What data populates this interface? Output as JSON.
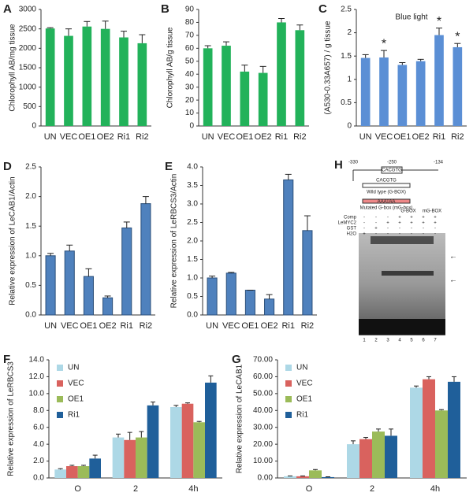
{
  "chart_data": [
    {
      "type": "bar",
      "label": "A",
      "ylabel": "Chlorophyll AB/mg tissue",
      "categories": [
        "UN",
        "VEC",
        "OE1",
        "OE2",
        "Ri1",
        "Ri2"
      ],
      "values": [
        2510,
        2320,
        2560,
        2500,
        2280,
        2130
      ],
      "errors": [
        20,
        180,
        130,
        200,
        160,
        220
      ],
      "color": "#22b25a",
      "ylim": [
        0,
        3000
      ],
      "yticks": [
        0,
        500,
        1000,
        1500,
        2000,
        2500,
        3000
      ]
    },
    {
      "type": "bar",
      "label": "B",
      "ylabel": "Chlorophyll AB/g tissue",
      "categories": [
        "UN",
        "VEC",
        "OE1",
        "OE2",
        "Ri1",
        "Ri2"
      ],
      "values": [
        60,
        62,
        42,
        41,
        80,
        74
      ],
      "errors": [
        2,
        3,
        5,
        5,
        3,
        4
      ],
      "color": "#22b25a",
      "ylim": [
        0,
        90
      ],
      "yticks": [
        0,
        10,
        20,
        30,
        40,
        50,
        60,
        70,
        80,
        90
      ]
    },
    {
      "type": "bar",
      "label": "C",
      "ylabel": "(A530-0.33A657) / g tissue",
      "annotation": "Blue light",
      "categories": [
        "UN",
        "VEC",
        "OE1",
        "OE2",
        "Ri1",
        "Ri2"
      ],
      "values": [
        1.46,
        1.47,
        1.31,
        1.39,
        1.95,
        1.69
      ],
      "errors": [
        0.07,
        0.15,
        0.05,
        0.04,
        0.15,
        0.08
      ],
      "significance": [
        null,
        "*",
        null,
        null,
        "*",
        "*"
      ],
      "color": "#5b8fd5",
      "ylim": [
        0,
        2.5
      ],
      "yticks": [
        0,
        0.5,
        1,
        {
          "value": 1.5,
          "label": "1.5"
        },
        2,
        2.5
      ]
    },
    {
      "type": "bar",
      "label": "D",
      "ylabel": "Relative expression of LeCAB1/Actin",
      "categories": [
        "UN",
        "VEC",
        "OE1",
        "OE2",
        "Ri1",
        "Ri2"
      ],
      "values": [
        1.0,
        1.08,
        0.65,
        0.29,
        1.47,
        1.88
      ],
      "errors": [
        0.04,
        0.1,
        0.13,
        0.03,
        0.1,
        0.12
      ],
      "color": "#4f81bd",
      "ylim": [
        0,
        2.5
      ],
      "yticks": [
        {
          "value": 0,
          "label": "0.0"
        },
        0.5,
        {
          "value": 1,
          "label": "1.0"
        },
        1.5,
        {
          "value": 2,
          "label": "2.0"
        },
        2.5
      ]
    },
    {
      "type": "bar",
      "label": "E",
      "ylabel": "Relative expression of LeRBCS3/Actin",
      "categories": [
        "UN",
        "VEC",
        "OE1",
        "OE2",
        "Ri1",
        "Ri2"
      ],
      "values": [
        1.0,
        1.13,
        0.67,
        0.43,
        3.65,
        2.28
      ],
      "errors": [
        0.05,
        0.02,
        0,
        0.12,
        0.15,
        0.4
      ],
      "color": "#4f81bd",
      "ylim": [
        0,
        4
      ],
      "yticks": [
        {
          "value": 0,
          "label": "0.0"
        },
        0.5,
        {
          "value": 1,
          "label": "1.0"
        },
        1.5,
        {
          "value": 2,
          "label": "2.0"
        },
        2.5,
        {
          "value": 3,
          "label": "3.0"
        },
        3.5,
        {
          "value": 4,
          "label": "4.0"
        }
      ]
    },
    {
      "type": "grouped-bar",
      "label": "F",
      "ylabel": "Relative expression of LeRBCS3",
      "legend": "upper left",
      "categories": [
        "O",
        "2",
        "4h"
      ],
      "series": [
        {
          "name": "UN",
          "color": "#add8e6",
          "values": [
            1.0,
            4.8,
            8.4
          ],
          "errors": [
            0.1,
            0.4,
            0.2
          ]
        },
        {
          "name": "VEC",
          "color": "#d9625e",
          "values": [
            1.4,
            4.5,
            8.8
          ],
          "errors": [
            0.1,
            0.9,
            0.1
          ]
        },
        {
          "name": "OE1",
          "color": "#9bbb59",
          "values": [
            1.4,
            4.8,
            6.6
          ],
          "errors": [
            0.1,
            0.7,
            0.1
          ]
        },
        {
          "name": "Ri1",
          "color": "#1f5f9a",
          "values": [
            2.3,
            8.6,
            11.3
          ],
          "errors": [
            0.4,
            0.4,
            0.8
          ]
        }
      ],
      "ylim": [
        0,
        14
      ],
      "yticks": [
        {
          "value": 0,
          "label": "0.0"
        },
        {
          "value": 2,
          "label": "2.0"
        },
        {
          "value": 4,
          "label": "4.0"
        },
        {
          "value": 6,
          "label": "6.0"
        },
        {
          "value": 8,
          "label": "8.0"
        },
        {
          "value": 10,
          "label": "10.0"
        },
        {
          "value": 12,
          "label": "12.0"
        },
        {
          "value": 14,
          "label": "14.0"
        }
      ]
    },
    {
      "type": "grouped-bar",
      "label": "G",
      "ylabel": "Relative expression of LeCAB1",
      "legend": "upper left",
      "categories": [
        "O",
        "2",
        "4h"
      ],
      "series": [
        {
          "name": "UN",
          "color": "#add8e6",
          "values": [
            1,
            20,
            53.5
          ],
          "errors": [
            0.2,
            2,
            1
          ]
        },
        {
          "name": "VEC",
          "color": "#d9625e",
          "values": [
            1,
            23,
            58.5
          ],
          "errors": [
            0.2,
            1,
            1.5
          ]
        },
        {
          "name": "OE1",
          "color": "#9bbb59",
          "values": [
            4.5,
            27.5,
            40
          ],
          "errors": [
            0.5,
            1.5,
            0.5
          ]
        },
        {
          "name": "Ri1",
          "color": "#1f5f9a",
          "values": [
            0.5,
            25,
            57
          ],
          "errors": [
            0.2,
            4,
            3
          ]
        }
      ],
      "ylim": [
        0,
        70
      ],
      "yticks": [
        {
          "value": 0,
          "label": "0.00"
        },
        {
          "value": 10,
          "label": "10.00"
        },
        {
          "value": 20,
          "label": "20.00"
        },
        {
          "value": 30,
          "label": "30.00"
        },
        {
          "value": 40,
          "label": "40.00"
        },
        {
          "value": 50,
          "label": "50.00"
        },
        {
          "value": 60,
          "label": "60.00"
        },
        {
          "value": 70,
          "label": "70.00"
        }
      ]
    }
  ],
  "panel_h": {
    "label": "H",
    "positions": [
      "-330",
      "-250",
      "-134"
    ],
    "probe_sequence": "CACGTG",
    "wild_type_label": "Wild type (G-BOX)",
    "mutant_sequence": "AAATAA",
    "mutant_label": "Mutated G-box (mG-box)",
    "competitor_labels": [
      "G-BOX",
      "mG-BOX"
    ],
    "rows": [
      {
        "name": "Comp",
        "signs": [
          "-",
          "-",
          "-",
          "+",
          "+",
          "+",
          "+"
        ]
      },
      {
        "name": "LeMYC2",
        "signs": [
          "-",
          "-",
          "+",
          "+",
          "+",
          "+",
          "+"
        ]
      },
      {
        "name": "GST",
        "signs": [
          "-",
          "+",
          "-",
          "-",
          "-",
          "-",
          "-"
        ]
      },
      {
        "name": "H2O",
        "signs": [
          "+",
          "-",
          "-",
          "-",
          "-",
          "-",
          "-"
        ]
      }
    ],
    "lanes": [
      "1",
      "2",
      "3",
      "4",
      "5",
      "6",
      "7"
    ]
  }
}
